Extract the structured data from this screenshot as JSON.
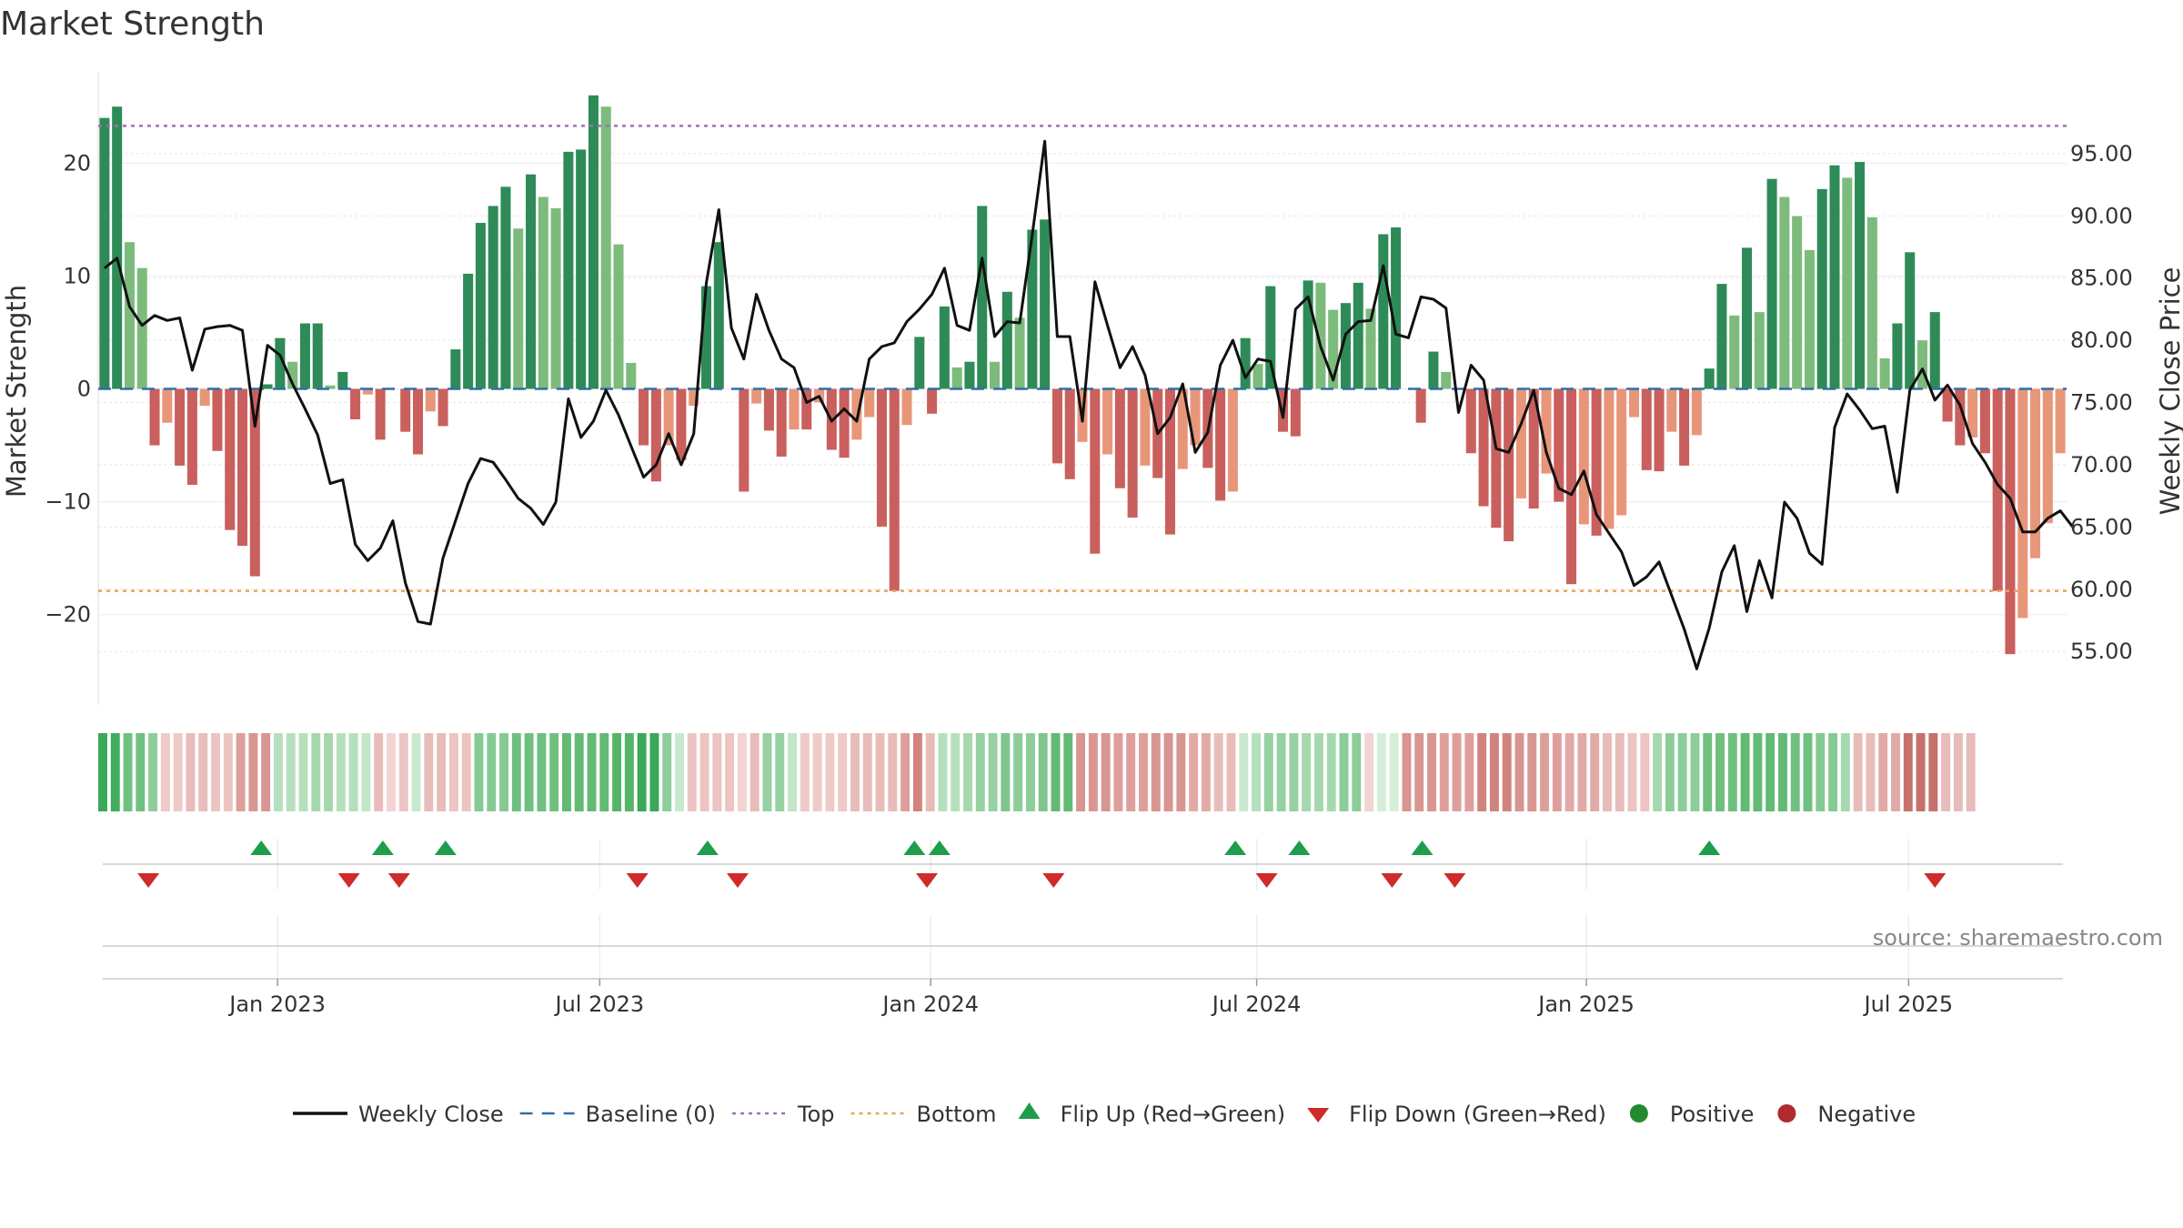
{
  "chart_data": {
    "type": "bar",
    "title": "Market Strength",
    "ylabel_left": "Market Strength",
    "ylabel_right": "Weekly Close Price",
    "source": "source: sharemaestro.com",
    "ylim_left": [
      -28,
      28
    ],
    "ylim_right": [
      50.7,
      101.5
    ],
    "yticks_left": [
      {
        "value": 20,
        "label": "20"
      },
      {
        "value": 10,
        "label": "10"
      },
      {
        "value": 0,
        "label": "0"
      },
      {
        "value": -10,
        "label": "−10"
      },
      {
        "value": -20,
        "label": "−20"
      }
    ],
    "yticks_right": [
      {
        "value": 95,
        "label": "95.00"
      },
      {
        "value": 90,
        "label": "90.00"
      },
      {
        "value": 85,
        "label": "85.00"
      },
      {
        "value": 80,
        "label": "80.00"
      },
      {
        "value": 75,
        "label": "75.00"
      },
      {
        "value": 70,
        "label": "70.00"
      },
      {
        "value": 65,
        "label": "65.00"
      },
      {
        "value": 60,
        "label": "60.00"
      },
      {
        "value": 55,
        "label": "55.00"
      }
    ],
    "x_ticks": [
      {
        "week": 14.3,
        "label": "Jan 2023"
      },
      {
        "week": 40.0,
        "label": "Jul 2023"
      },
      {
        "week": 66.4,
        "label": "Jan 2024"
      },
      {
        "week": 92.4,
        "label": "Jul 2024"
      },
      {
        "week": 118.7,
        "label": "Jan 2025"
      },
      {
        "week": 144.4,
        "label": "Jul 2025"
      }
    ],
    "top_line": 23.3,
    "bottom_line": -17.9,
    "baseline": 0,
    "series": [
      {
        "name": "Market Strength",
        "values": [
          24.0,
          25.0,
          13.0,
          10.7,
          -5.0,
          -3.0,
          -6.8,
          -8.5,
          -1.5,
          -5.5,
          -12.5,
          -13.9,
          -16.6,
          0.4,
          4.5,
          2.4,
          5.8,
          5.8,
          0.3,
          1.5,
          -2.7,
          -0.5,
          -4.5,
          0,
          -3.8,
          -5.8,
          -2.0,
          -3.3,
          3.5,
          10.2,
          14.7,
          16.2,
          17.9,
          14.2,
          19.0,
          17.0,
          16.0,
          21.0,
          21.2,
          26.0,
          25.0,
          12.8,
          2.3,
          -5.0,
          -8.2,
          -5.0,
          -6.3,
          -1.5,
          9.1,
          13.0,
          0,
          -9.1,
          -1.3,
          -3.7,
          -6.0,
          -3.6,
          -3.6,
          -1.2,
          -5.4,
          -6.1,
          -4.5,
          -2.5,
          -12.2,
          -17.9,
          -3.2,
          4.6,
          -2.2,
          7.3,
          1.9,
          2.4,
          16.2,
          2.4,
          8.6,
          6.3,
          14.1,
          15.0,
          -6.6,
          -8.0,
          -4.7,
          -14.6,
          -5.8,
          -8.8,
          -11.4,
          -6.8,
          -7.9,
          -12.9,
          -7.1,
          -5.0,
          -7.0,
          -9.9,
          -9.1,
          4.5,
          2.2,
          9.1,
          -3.8,
          -4.2,
          9.6,
          9.4,
          7.0,
          7.6,
          9.4,
          7.1,
          13.7,
          14.3,
          0,
          -3.0,
          3.3,
          1.5,
          0,
          -5.7,
          -10.4,
          -12.3,
          -13.5,
          -9.7,
          -10.6,
          -7.5,
          -10.0,
          -17.3,
          -12.0,
          -13.0,
          -12.4,
          -11.2,
          -2.5,
          -7.2,
          -7.3,
          -3.8,
          -6.8,
          -4.1,
          1.8,
          9.3,
          6.5,
          12.5,
          6.8,
          18.6,
          17.0,
          15.3,
          12.3,
          17.7,
          19.8,
          18.7,
          20.1,
          15.2,
          2.7,
          5.8,
          12.1,
          4.3,
          6.8,
          -2.9,
          -5.0,
          -4.3,
          -5.7,
          -17.9,
          -23.5,
          -20.3,
          -15.0,
          -11.9,
          -5.7
        ]
      },
      {
        "name": "Weekly Close",
        "values": [
          85.8,
          86.6,
          82.7,
          81.2,
          82.0,
          81.6,
          81.8,
          77.6,
          80.9,
          81.1,
          81.2,
          80.8,
          73.1,
          79.6,
          78.8,
          76.5,
          74.5,
          72.4,
          68.5,
          68.8,
          63.6,
          62.3,
          63.3,
          65.5,
          60.5,
          57.4,
          57.2,
          62.5,
          65.5,
          68.5,
          70.5,
          70.2,
          68.8,
          67.3,
          66.5,
          65.2,
          67.0,
          75.3,
          72.2,
          73.5,
          76.0,
          74.0,
          71.5,
          69.0,
          70.0,
          72.5,
          70.0,
          72.5,
          84.6,
          90.5,
          81.0,
          78.5,
          83.7,
          80.8,
          78.5,
          77.8,
          75.0,
          75.5,
          73.5,
          74.5,
          73.5,
          78.5,
          79.5,
          79.8,
          81.5,
          82.5,
          83.7,
          85.8,
          81.2,
          80.8,
          86.6,
          80.3,
          81.5,
          81.4,
          88.5,
          96.0,
          80.3,
          80.3,
          73.5,
          84.7,
          81.2,
          77.8,
          79.5,
          77.2,
          72.5,
          73.8,
          76.5,
          71.0,
          72.6,
          78.0,
          80.0,
          77.0,
          78.5,
          78.3,
          73.8,
          82.5,
          83.5,
          79.5,
          76.8,
          80.5,
          81.5,
          81.6,
          86.0,
          80.5,
          80.2,
          83.5,
          83.3,
          82.6,
          74.2,
          78.0,
          76.8,
          71.3,
          71.0,
          73.3,
          76.0,
          71.0,
          68.1,
          67.6,
          69.5,
          66.0,
          64.5,
          63.0,
          60.3,
          61.0,
          62.2,
          59.5,
          56.8,
          53.6,
          56.9,
          61.4,
          63.5,
          58.2,
          62.3,
          59.3,
          67.0,
          65.7,
          62.9,
          62.0,
          73.0,
          75.7,
          74.4,
          72.9,
          73.1,
          67.8,
          76.0,
          77.7,
          75.2,
          76.4,
          74.8,
          71.7,
          70.2,
          68.4,
          67.3,
          64.6,
          64.6,
          65.7,
          66.3,
          65.0
        ]
      }
    ],
    "strength_strip": [
      {
        "weeks": 1,
        "color": "#3aa858"
      },
      {
        "weeks": 1,
        "color": "#42ac5e"
      },
      {
        "weeks": 2,
        "color": "#70c181"
      },
      {
        "weeks": 1,
        "color": "#8ccd99"
      },
      {
        "weeks": 2,
        "color": "#eecac8"
      },
      {
        "weeks": 2,
        "color": "#e8bcb9"
      },
      {
        "weeks": 2,
        "color": "#ecc4c1"
      },
      {
        "weeks": 1,
        "color": "#de9f9c"
      },
      {
        "weeks": 2,
        "color": "#d99591"
      },
      {
        "weeks": 3,
        "color": "#b5e0bd"
      },
      {
        "weeks": 2,
        "color": "#a6d8ae"
      },
      {
        "weeks": 2,
        "color": "#b5e0bd"
      },
      {
        "weeks": 1,
        "color": "#c3e6c8"
      },
      {
        "weeks": 1,
        "color": "#e8bcb9"
      },
      {
        "weeks": 1,
        "color": "#f2d4d2"
      },
      {
        "weeks": 1,
        "color": "#ecc4c1"
      },
      {
        "weeks": 1,
        "color": "#c9e9ce"
      },
      {
        "weeks": 2,
        "color": "#e8bcb9"
      },
      {
        "weeks": 2,
        "color": "#ecc4c1"
      },
      {
        "weeks": 3,
        "color": "#85ca93"
      },
      {
        "weeks": 4,
        "color": "#6fc07f"
      },
      {
        "weeks": 4,
        "color": "#62ba74"
      },
      {
        "weeks": 2,
        "color": "#55b468"
      },
      {
        "weeks": 2,
        "color": "#3aa858"
      },
      {
        "weeks": 1,
        "color": "#8ccd99"
      },
      {
        "weeks": 1,
        "color": "#c9e9ce"
      },
      {
        "weeks": 4,
        "color": "#ecc4c1"
      },
      {
        "weeks": 1,
        "color": "#f2d4d2"
      },
      {
        "weeks": 1,
        "color": "#e8bcb9"
      },
      {
        "weeks": 2,
        "color": "#95d1a1"
      },
      {
        "weeks": 1,
        "color": "#c3e6c8"
      },
      {
        "weeks": 4,
        "color": "#eecac8"
      },
      {
        "weeks": 4,
        "color": "#e8bcb9"
      },
      {
        "weeks": 1,
        "color": "#de9f9c"
      },
      {
        "weeks": 1,
        "color": "#d0837f"
      },
      {
        "weeks": 1,
        "color": "#e8bcb9"
      },
      {
        "weeks": 2,
        "color": "#b5e0bd"
      },
      {
        "weeks": 1,
        "color": "#a6d8ae"
      },
      {
        "weeks": 2,
        "color": "#95d1a1"
      },
      {
        "weeks": 1,
        "color": "#7ec68d"
      },
      {
        "weeks": 2,
        "color": "#8ccd99"
      },
      {
        "weeks": 1,
        "color": "#7ec68d"
      },
      {
        "weeks": 2,
        "color": "#62ba74"
      },
      {
        "weeks": 3,
        "color": "#d99591"
      },
      {
        "weeks": 3,
        "color": "#de9f9c"
      },
      {
        "weeks": 3,
        "color": "#d99591"
      },
      {
        "weeks": 2,
        "color": "#e2aaa7"
      },
      {
        "weeks": 2,
        "color": "#e8bcb9"
      },
      {
        "weeks": 1,
        "color": "#c9e9ce"
      },
      {
        "weeks": 1,
        "color": "#b5e0bd"
      },
      {
        "weeks": 3,
        "color": "#95d1a1"
      },
      {
        "weeks": 3,
        "color": "#a6d8ae"
      },
      {
        "weeks": 2,
        "color": "#8ccd99"
      },
      {
        "weeks": 1,
        "color": "#f2d4d2"
      },
      {
        "weeks": 2,
        "color": "#d6eed9"
      },
      {
        "weeks": 3,
        "color": "#d99591"
      },
      {
        "weeks": 3,
        "color": "#de9f9c"
      },
      {
        "weeks": 3,
        "color": "#d0837f"
      },
      {
        "weeks": 2,
        "color": "#d99591"
      },
      {
        "weeks": 2,
        "color": "#de9f9c"
      },
      {
        "weeks": 3,
        "color": "#e2aaa7"
      },
      {
        "weeks": 2,
        "color": "#e8bcb9"
      },
      {
        "weeks": 2,
        "color": "#ecc4c1"
      },
      {
        "weeks": 1,
        "color": "#a6d8ae"
      },
      {
        "weeks": 3,
        "color": "#8ccd99"
      },
      {
        "weeks": 3,
        "color": "#6fc07f"
      },
      {
        "weeks": 4,
        "color": "#62ba74"
      },
      {
        "weeks": 2,
        "color": "#70c181"
      },
      {
        "weeks": 2,
        "color": "#85ca93"
      },
      {
        "weeks": 1,
        "color": "#a6d8ae"
      },
      {
        "weeks": 2,
        "color": "#e8bcb9"
      },
      {
        "weeks": 2,
        "color": "#e2aaa7"
      },
      {
        "weeks": 3,
        "color": "#c8706c"
      },
      {
        "weeks": 3,
        "color": "#e8bcb9"
      }
    ],
    "flip_up_weeks": [
      13.0,
      22.7,
      27.7,
      48.6,
      65.1,
      67.1,
      90.7,
      95.8,
      105.6,
      128.5
    ],
    "flip_down_weeks": [
      4.0,
      20.0,
      24.0,
      43.0,
      51.0,
      66.1,
      76.2,
      93.2,
      103.2,
      108.2,
      146.5
    ],
    "legend": [
      {
        "key": "weekly-close",
        "label": "Weekly Close",
        "color": "#111111"
      },
      {
        "key": "baseline",
        "label": "Baseline (0)",
        "color": "#2f6fa7"
      },
      {
        "key": "top",
        "label": "Top",
        "color": "#a070b8"
      },
      {
        "key": "bottom",
        "label": "Bottom",
        "color": "#e8a45a"
      },
      {
        "key": "flip-up",
        "label": "Flip Up (Red→Green)",
        "color": "#1e9e4a"
      },
      {
        "key": "flip-down",
        "label": "Flip Down (Green→Red)",
        "color": "#d02a2a"
      },
      {
        "key": "positive",
        "label": "Positive",
        "color": "#238a2e"
      },
      {
        "key": "negative",
        "label": "Negative",
        "color": "#b02a2e"
      }
    ]
  }
}
